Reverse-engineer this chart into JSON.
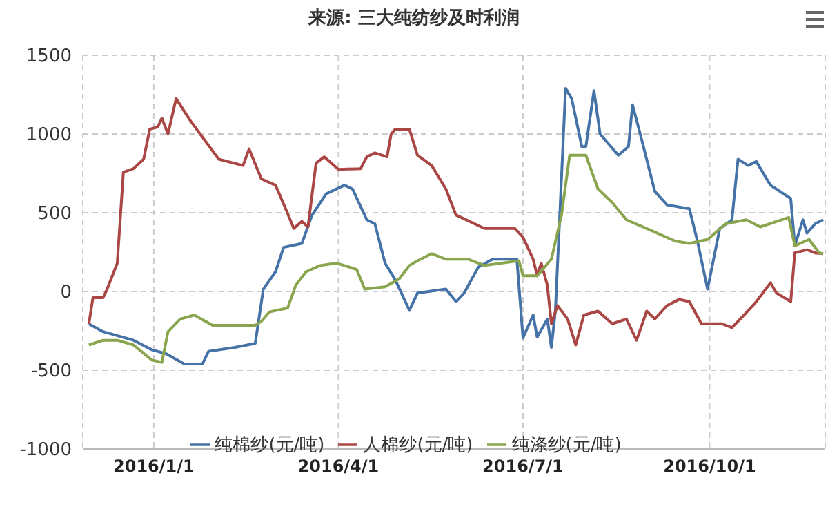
{
  "chart_data": {
    "type": "line",
    "title": "来源: 三大纯纺纱及时利润",
    "xlim": [
      "2015-11-27",
      "2016-11-27"
    ],
    "xticks": [
      {
        "value": "2016-01-01",
        "label": "2016/1/1"
      },
      {
        "value": "2016-04-01",
        "label": "2016/4/1"
      },
      {
        "value": "2016-07-01",
        "label": "2016/7/1"
      },
      {
        "value": "2016-10-01",
        "label": "2016/10/1"
      }
    ],
    "ylim": [
      -1000,
      1500
    ],
    "yticks": [
      -1000,
      -500,
      0,
      500,
      1000,
      1500
    ],
    "grid": true,
    "legend": "bottom",
    "marker": "none",
    "line_style": "solid",
    "series": [
      {
        "name": "纯棉纱(元/吨)",
        "color": "#4572a7",
        "x": [
          "2015-11-30",
          "2015-12-07",
          "2015-12-22",
          "2015-12-31",
          "2016-01-07",
          "2016-01-16",
          "2016-01-25",
          "2016-01-28",
          "2016-02-10",
          "2016-02-20",
          "2016-02-24",
          "2016-03-01",
          "2016-03-05",
          "2016-03-14",
          "2016-03-19",
          "2016-03-26",
          "2016-04-04",
          "2016-04-08",
          "2016-04-15",
          "2016-04-19",
          "2016-04-24",
          "2016-04-29",
          "2016-05-06",
          "2016-05-10",
          "2016-05-24",
          "2016-05-29",
          "2016-06-02",
          "2016-06-09",
          "2016-06-16",
          "2016-06-28",
          "2016-07-01",
          "2016-07-06",
          "2016-07-08",
          "2016-07-13",
          "2016-07-15",
          "2016-07-17",
          "2016-07-22",
          "2016-07-25",
          "2016-07-30",
          "2016-08-01",
          "2016-08-05",
          "2016-08-08",
          "2016-08-17",
          "2016-08-22",
          "2016-08-24",
          "2016-08-28",
          "2016-09-04",
          "2016-09-10",
          "2016-09-21",
          "2016-09-25",
          "2016-09-30",
          "2016-10-06",
          "2016-10-12",
          "2016-10-15",
          "2016-10-20",
          "2016-10-24",
          "2016-10-31",
          "2016-11-10",
          "2016-11-12",
          "2016-11-16",
          "2016-11-18",
          "2016-11-22",
          "2016-11-26"
        ],
        "values": [
          -206,
          -255,
          -310,
          -370,
          -395,
          -460,
          -460,
          -380,
          -355,
          -330,
          15,
          125,
          280,
          305,
          485,
          620,
          675,
          650,
          455,
          430,
          180,
          75,
          -120,
          -10,
          15,
          -65,
          -10,
          155,
          205,
          205,
          -295,
          -150,
          -290,
          -175,
          -355,
          -120,
          1290,
          1225,
          920,
          920,
          1275,
          1000,
          865,
          920,
          1185,
          990,
          635,
          550,
          525,
          320,
          15,
          400,
          455,
          840,
          800,
          825,
          675,
          590,
          290,
          455,
          370,
          430,
          455
        ]
      },
      {
        "name": "人棉纱(元/吨)",
        "color": "#aa4643",
        "x": [
          "2015-11-30",
          "2015-12-02",
          "2015-12-07",
          "2015-12-09",
          "2015-12-14",
          "2015-12-17",
          "2015-12-22",
          "2015-12-27",
          "2015-12-30",
          "2016-01-03",
          "2016-01-05",
          "2016-01-08",
          "2016-01-12",
          "2016-01-19",
          "2016-02-02",
          "2016-02-14",
          "2016-02-17",
          "2016-02-23",
          "2016-03-01",
          "2016-03-06",
          "2016-03-10",
          "2016-03-14",
          "2016-03-17",
          "2016-03-21",
          "2016-03-25",
          "2016-04-01",
          "2016-04-12",
          "2016-04-15",
          "2016-04-19",
          "2016-04-25",
          "2016-04-27",
          "2016-04-29",
          "2016-05-06",
          "2016-05-10",
          "2016-05-17",
          "2016-05-24",
          "2016-05-29",
          "2016-06-12",
          "2016-06-27",
          "2016-07-01",
          "2016-07-06",
          "2016-07-08",
          "2016-07-10",
          "2016-07-13",
          "2016-07-15",
          "2016-07-18",
          "2016-07-23",
          "2016-07-27",
          "2016-07-31",
          "2016-08-07",
          "2016-08-14",
          "2016-08-21",
          "2016-08-26",
          "2016-08-31",
          "2016-09-04",
          "2016-09-10",
          "2016-09-16",
          "2016-09-21",
          "2016-09-27",
          "2016-10-07",
          "2016-10-12",
          "2016-10-18",
          "2016-10-24",
          "2016-10-31",
          "2016-11-03",
          "2016-11-10",
          "2016-11-12",
          "2016-11-18",
          "2016-11-22",
          "2016-11-26"
        ],
        "values": [
          -206,
          -40,
          -40,
          15,
          180,
          757,
          780,
          840,
          1030,
          1045,
          1100,
          1000,
          1225,
          1085,
          840,
          800,
          905,
          715,
          675,
          525,
          400,
          445,
          410,
          815,
          855,
          775,
          780,
          855,
          880,
          855,
          1000,
          1030,
          1030,
          865,
          800,
          650,
          485,
          400,
          400,
          345,
          205,
          100,
          180,
          40,
          -205,
          -90,
          -175,
          -340,
          -150,
          -125,
          -205,
          -175,
          -310,
          -125,
          -175,
          -90,
          -50,
          -65,
          -205,
          -205,
          -230,
          -150,
          -65,
          55,
          -10,
          -65,
          245,
          265,
          245,
          240
        ]
      },
      {
        "name": "纯涤纱(元/吨)",
        "color": "#89a54e",
        "x": [
          "2015-11-30",
          "2015-12-07",
          "2015-12-14",
          "2015-12-22",
          "2015-12-31",
          "2016-01-05",
          "2016-01-08",
          "2016-01-14",
          "2016-01-21",
          "2016-01-30",
          "2016-02-20",
          "2016-02-23",
          "2016-02-27",
          "2016-03-07",
          "2016-03-11",
          "2016-03-16",
          "2016-03-23",
          "2016-03-31",
          "2016-04-10",
          "2016-04-14",
          "2016-04-24",
          "2016-05-01",
          "2016-05-06",
          "2016-05-10",
          "2016-05-17",
          "2016-05-24",
          "2016-06-04",
          "2016-06-12",
          "2016-06-29",
          "2016-07-01",
          "2016-07-08",
          "2016-07-15",
          "2016-07-20",
          "2016-07-24",
          "2016-08-01",
          "2016-08-07",
          "2016-08-14",
          "2016-08-21",
          "2016-08-31",
          "2016-09-14",
          "2016-09-21",
          "2016-09-30",
          "2016-10-09",
          "2016-10-19",
          "2016-10-26",
          "2016-11-09",
          "2016-11-12",
          "2016-11-19",
          "2016-11-24",
          "2016-11-26"
        ],
        "values": [
          -340,
          -310,
          -310,
          -340,
          -435,
          -450,
          -255,
          -175,
          -150,
          -215,
          -215,
          -190,
          -130,
          -105,
          40,
          125,
          165,
          180,
          140,
          15,
          30,
          80,
          165,
          195,
          240,
          205,
          205,
          165,
          195,
          100,
          100,
          205,
          485,
          865,
          865,
          650,
          565,
          455,
          400,
          320,
          305,
          330,
          430,
          455,
          410,
          470,
          290,
          330,
          245,
          240
        ]
      }
    ]
  }
}
